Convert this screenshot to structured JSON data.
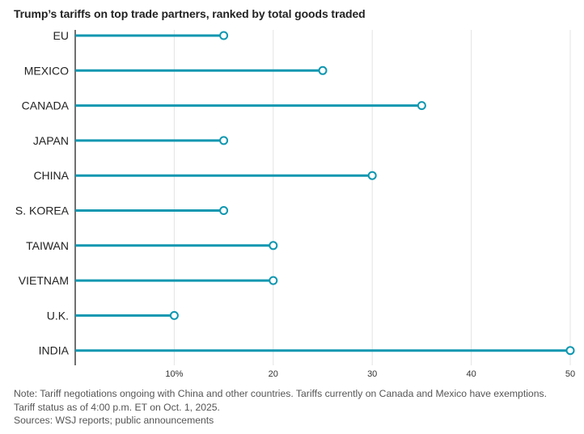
{
  "chart_data": {
    "type": "lollipop",
    "title": "Trump’s tariffs on top trade partners, ranked by total goods traded",
    "categories": [
      "EU",
      "MEXICO",
      "CANADA",
      "JAPAN",
      "CHINA",
      "S. KOREA",
      "TAIWAN",
      "VIETNAM",
      "U.K.",
      "INDIA"
    ],
    "values": [
      15,
      25,
      35,
      15,
      30,
      15,
      20,
      20,
      10,
      50
    ],
    "xlim": [
      0,
      50
    ],
    "xticks": [
      10,
      20,
      30,
      40,
      50
    ],
    "xtick_labels": [
      "10%",
      "20",
      "30",
      "40",
      "50"
    ],
    "grid": true,
    "colors": {
      "stem": "#0e97b0",
      "marker_fill": "#ffffff",
      "grid": "#e3e3e3",
      "axis": "#222222"
    }
  },
  "notes": {
    "line1": "Note: Tariff negotiations ongoing with China and other countries. Tariffs currently on Canada and Mexico have exemptions.",
    "line2": "Tariff status as of 4:00 p.m. ET on Oct. 1, 2025.",
    "line3": "Sources: WSJ reports; public announcements"
  }
}
